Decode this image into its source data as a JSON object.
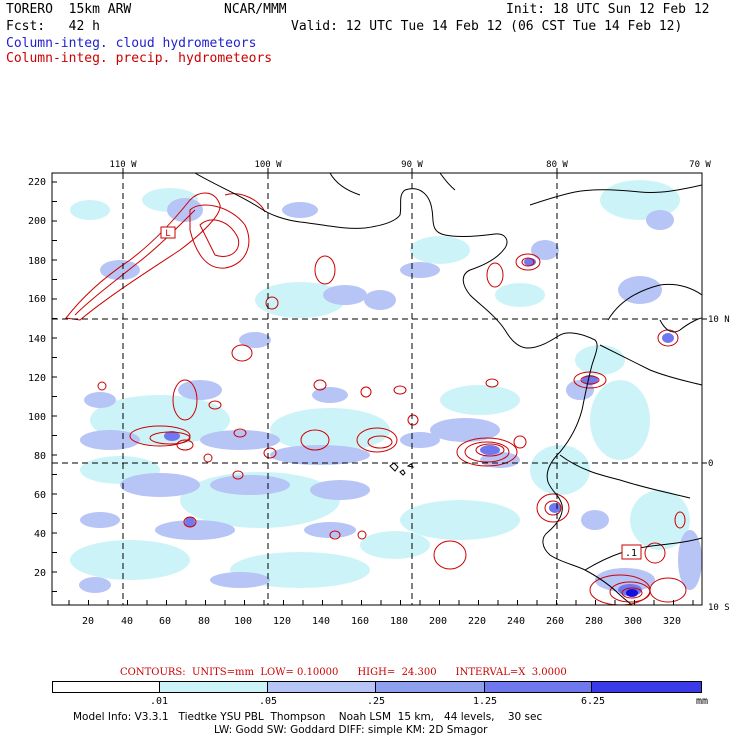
{
  "header": {
    "model": "TORERO  15km ARW",
    "org": "NCAR/MMM",
    "init": "Init: 18 UTC Sun 12 Feb 12",
    "fcst": "Fcst:   42 h",
    "valid": "Valid: 12 UTC Tue 14 Feb 12 (06 CST Tue 14 Feb 12)",
    "field1": "Column-integ. cloud hydrometeors",
    "field2": "Column-integ. precip. hydrometeors"
  },
  "colors": {
    "cloud_blue": "#2222cc",
    "precip_red": "#cc0000",
    "shade1": "#ccf4f8",
    "shade2": "#b7c4f6",
    "shade3": "#8f9ff0",
    "shade4": "#6f78ee",
    "shade5": "#3a3ae8",
    "shade6": "#1212e0"
  },
  "axes": {
    "top_lon_labels": [
      "110 W",
      "100 W",
      "90 W",
      "80 W",
      "70 W"
    ],
    "right_lat_labels": [
      "10 N",
      "0",
      "10 S"
    ],
    "left_y_ticks": [
      "220",
      "200",
      "180",
      "160",
      "140",
      "120",
      "100",
      "80",
      "60",
      "40",
      "20"
    ],
    "bottom_x_ticks": [
      "20",
      "40",
      "60",
      "80",
      "100",
      "120",
      "140",
      "160",
      "180",
      "200",
      "220",
      "240",
      "260",
      "280",
      "300",
      "320"
    ]
  },
  "annotations": {
    "low_box_1": "L",
    "low_box_2": ".1"
  },
  "contours_info": "CONTOURS:  UNITS=mm  LOW= 0.10000      HIGH=  24.300      INTERVAL=X  3.0000",
  "legend": {
    "labels": [
      ".01",
      ".05",
      ".25",
      "1.25",
      "6.25"
    ],
    "unit": "mm"
  },
  "footer": {
    "line1": "Model Info: V3.3.1   Tiedtke YSU PBL  Thompson    Noah LSM  15 km,   44 levels,    30 sec",
    "line2": "LW: Godd SW: Goddard DIFF: simple KM: 2D Smagor"
  }
}
